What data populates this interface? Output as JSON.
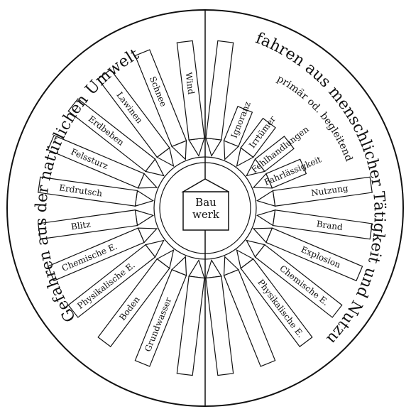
{
  "center": {
    "line1": "Bau",
    "line2": "werk"
  },
  "left_title": "Gefahren aus der natürlichen Umwelt",
  "right_title": "Gefahren aus menschlicher Tätigkeit und Nutzung",
  "right_subtitle": "primär od. begleitend",
  "left_labels": [
    "Wind",
    "Schnee",
    "Lawinen",
    "Erdbeben",
    "Felssturz",
    "Erdrutsch",
    "Blitz",
    "Chemische E.",
    "Physikalische E.",
    "Boden",
    "Grundwasser",
    ""
  ],
  "right_labels": [
    "",
    "Ignoranz",
    "Irrtümer",
    "Fehlhandlungen",
    "Fahrlässigkeit",
    "Nutzung",
    "Brand",
    "Explosion",
    "Chemische E.",
    "Physikalische E.",
    "",
    ""
  ],
  "colors": {
    "ink": "#111111",
    "paper": "#ffffff"
  }
}
